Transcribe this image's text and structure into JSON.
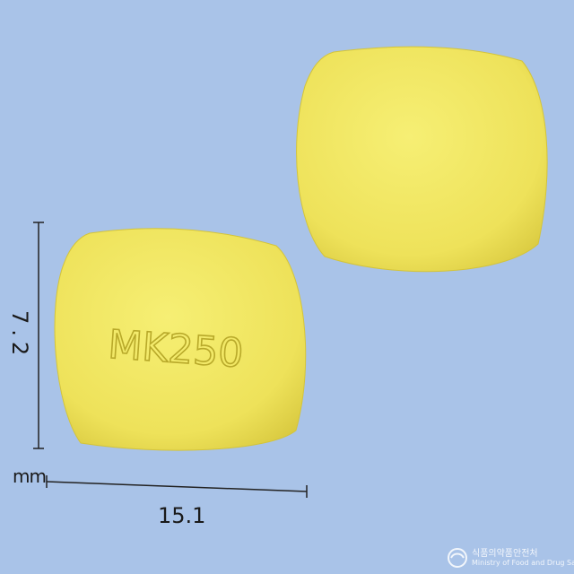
{
  "measurements": {
    "height": "7.2",
    "width": "15.1",
    "unit": "mm"
  },
  "pill": {
    "imprint": "MK250",
    "color": "#efe45a",
    "shadow_color": "#d8c93a"
  },
  "background_color": "#a9c3e8",
  "watermark": {
    "korean": "식품의약품안전처",
    "english": "Ministry of Food and Drug Safety"
  }
}
